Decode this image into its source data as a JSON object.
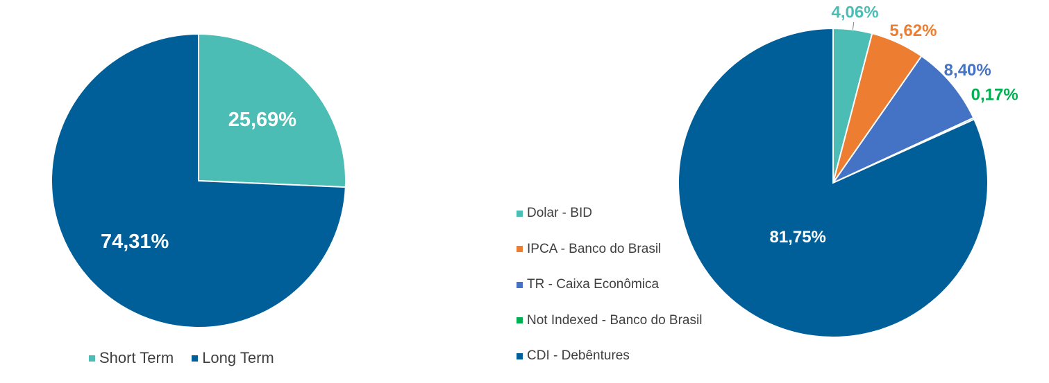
{
  "chart_data": [
    {
      "type": "pie",
      "categories": [
        "Short Term",
        "Long Term"
      ],
      "values": [
        25.69,
        74.31
      ],
      "data_labels": [
        "25,69%",
        "74,31%"
      ],
      "colors": [
        "#4BBDB4",
        "#005F99"
      ],
      "legend_position": "bottom"
    },
    {
      "type": "pie",
      "categories": [
        "Dolar - BID",
        "IPCA - Banco do Brasil",
        "TR - Caixa Econômica",
        "Not Indexed - Banco do Brasil",
        "CDI - Debêntures"
      ],
      "values": [
        4.06,
        5.62,
        8.4,
        0.17,
        81.75
      ],
      "data_labels": [
        "4,06%",
        "5,62%",
        "8,40%",
        "0,17%",
        "81,75%"
      ],
      "colors": [
        "#4BBDB4",
        "#ED7D31",
        "#4472C4",
        "#00B050",
        "#005F99"
      ],
      "legend_position": "left"
    }
  ]
}
